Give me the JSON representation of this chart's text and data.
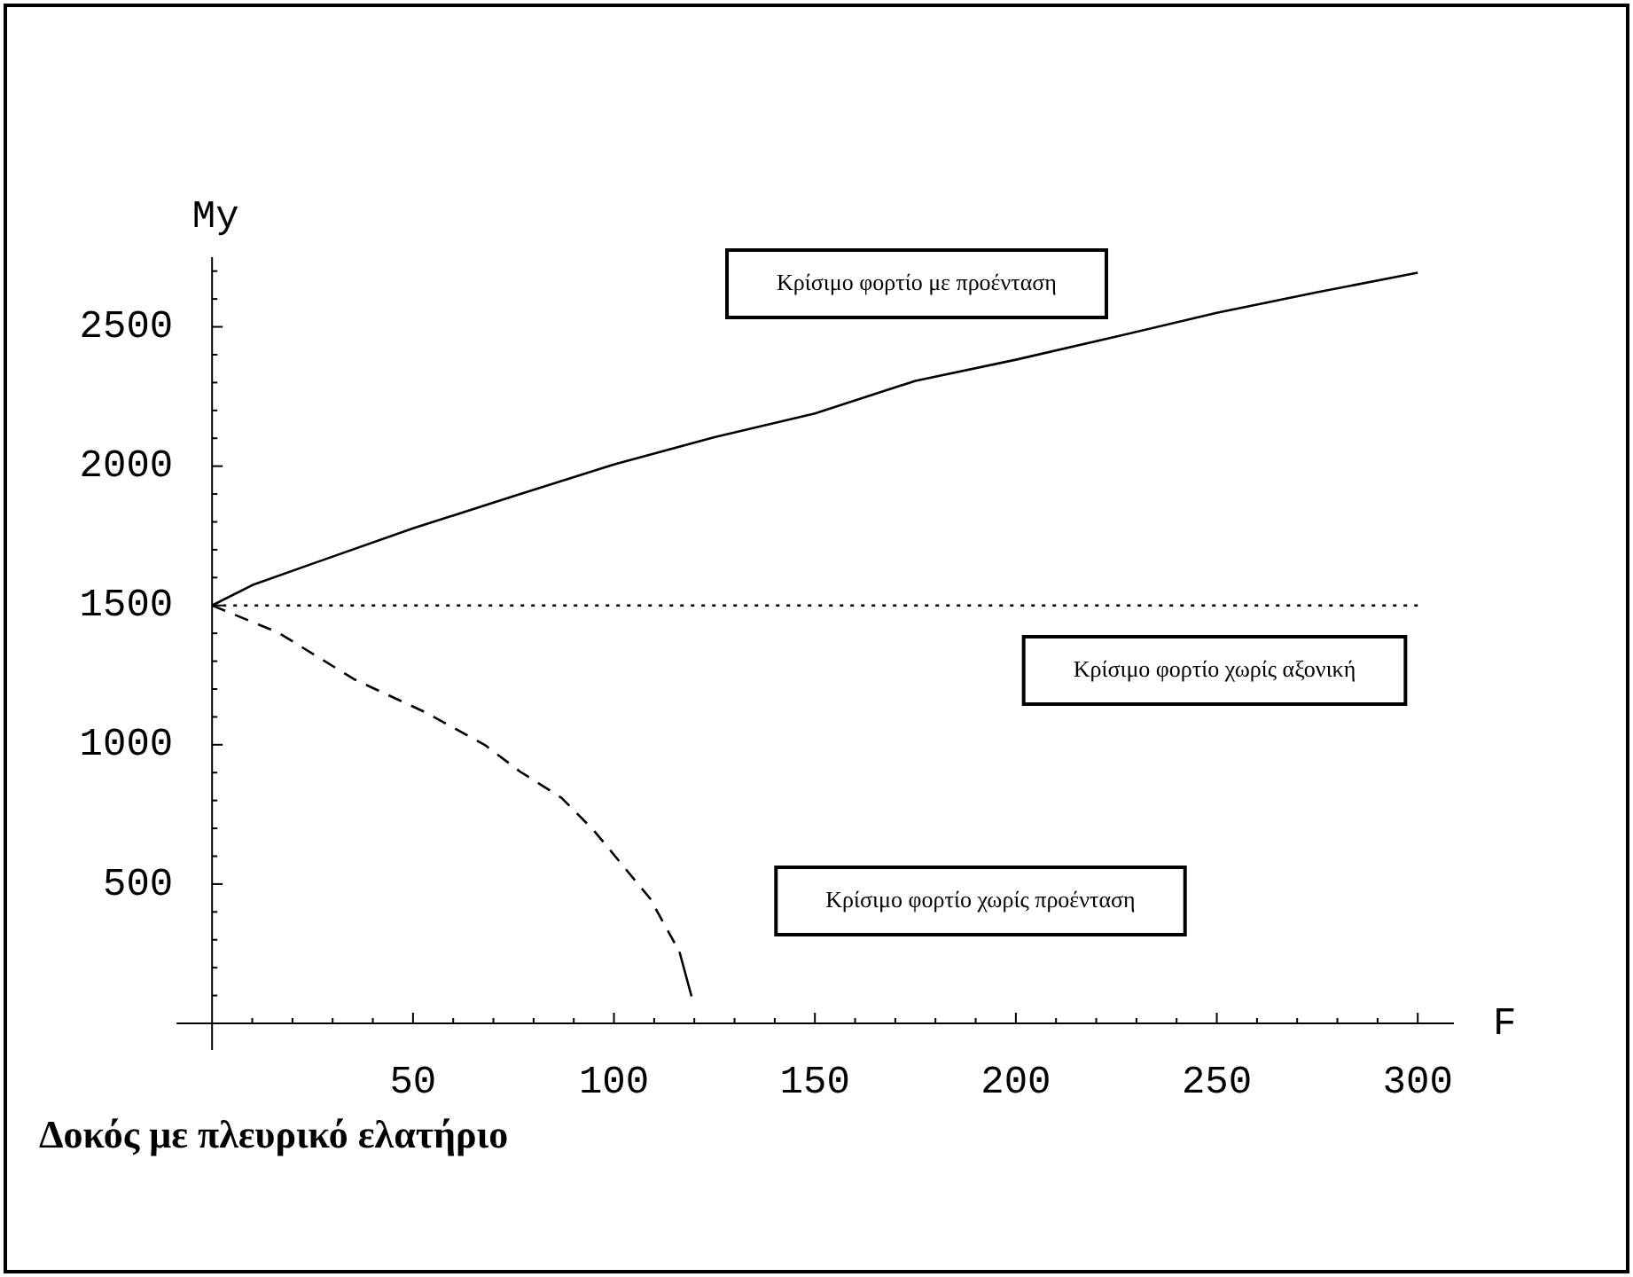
{
  "chart_data": {
    "type": "line",
    "title": "Δοκός με πλευρικό ελατήριο",
    "xlabel": "F",
    "ylabel": "My",
    "xlim": [
      0,
      309
    ],
    "ylim": [
      0,
      2750
    ],
    "xticks": [
      {
        "value": 10,
        "label": null
      },
      {
        "value": 20,
        "label": null
      },
      {
        "value": 30,
        "label": null
      },
      {
        "value": 40,
        "label": null
      },
      50,
      {
        "value": 60,
        "label": null
      },
      {
        "value": 70,
        "label": null
      },
      {
        "value": 80,
        "label": null
      },
      {
        "value": 90,
        "label": null
      },
      100,
      {
        "value": 110,
        "label": null
      },
      {
        "value": 120,
        "label": null
      },
      {
        "value": 130,
        "label": null
      },
      {
        "value": 140,
        "label": null
      },
      150,
      {
        "value": 160,
        "label": null
      },
      {
        "value": 170,
        "label": null
      },
      {
        "value": 180,
        "label": null
      },
      {
        "value": 190,
        "label": null
      },
      200,
      {
        "value": 210,
        "label": null
      },
      {
        "value": 220,
        "label": null
      },
      {
        "value": 230,
        "label": null
      },
      {
        "value": 240,
        "label": null
      },
      250,
      {
        "value": 260,
        "label": null
      },
      {
        "value": 270,
        "label": null
      },
      {
        "value": 280,
        "label": null
      },
      {
        "value": 290,
        "label": null
      },
      300
    ],
    "yticks": [
      {
        "value": 100,
        "label": null
      },
      {
        "value": 200,
        "label": null
      },
      {
        "value": 300,
        "label": null
      },
      {
        "value": 400,
        "label": null
      },
      500,
      {
        "value": 600,
        "label": null
      },
      {
        "value": 700,
        "label": null
      },
      {
        "value": 800,
        "label": null
      },
      {
        "value": 900,
        "label": null
      },
      1000,
      {
        "value": 1100,
        "label": null
      },
      {
        "value": 1200,
        "label": null
      },
      {
        "value": 1300,
        "label": null
      },
      {
        "value": 1400,
        "label": null
      },
      1500,
      {
        "value": 1600,
        "label": null
      },
      {
        "value": 1700,
        "label": null
      },
      {
        "value": 1800,
        "label": null
      },
      {
        "value": 1900,
        "label": null
      },
      2000,
      {
        "value": 2100,
        "label": null
      },
      {
        "value": 2200,
        "label": null
      },
      {
        "value": 2300,
        "label": null
      },
      {
        "value": 2400,
        "label": null
      },
      2500,
      {
        "value": 2600,
        "label": null
      },
      {
        "value": 2700,
        "label": null
      }
    ],
    "series": [
      {
        "color": "#000000",
        "line_style": "solid",
        "x": [
          0,
          10,
          25,
          50,
          75,
          100,
          125,
          150,
          175,
          200,
          225,
          250,
          275,
          300
        ],
        "values": [
          1500,
          1573,
          1650,
          1777,
          1892,
          2006,
          2104,
          2189,
          2306,
          2382,
          2465,
          2550,
          2624,
          2694
        ]
      },
      {
        "color": "#000000",
        "line_style": "dotted",
        "x": [
          0,
          300
        ],
        "values": [
          1500,
          1500
        ]
      },
      {
        "color": "#000000",
        "line_style": "dashed",
        "x": [
          0,
          16.4,
          35.5,
          53,
          67.8,
          76.6,
          87,
          95,
          109,
          116.3,
          119.3
        ],
        "values": [
          1500,
          1403,
          1234,
          1117,
          1000,
          904,
          809,
          692,
          448,
          257,
          97
        ]
      }
    ],
    "annotations": [
      "Κρίσιμο φορτίο με προένταση",
      "Κρίσιμο φορτίο χωρίς αξονική",
      "Κρίσιμο φορτίο χωρίς προένταση"
    ]
  }
}
